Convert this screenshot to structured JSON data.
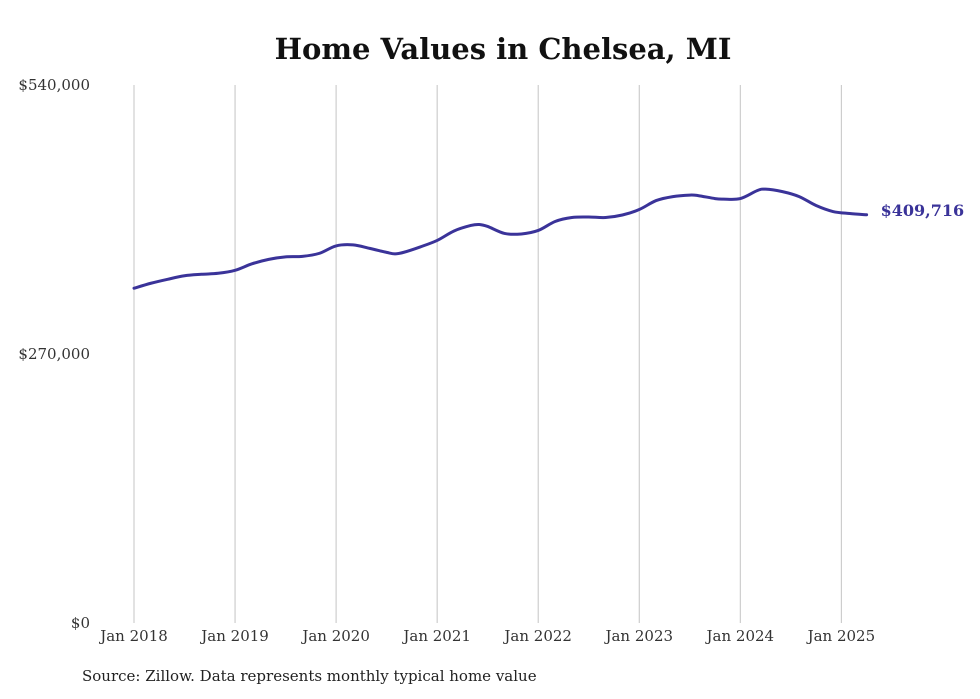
{
  "chart_data": {
    "type": "line",
    "title": "Home Values in Chelsea, MI",
    "xlabel": "",
    "ylabel": "",
    "ylim": [
      0,
      540000
    ],
    "y_ticks": [
      0,
      270000,
      540000
    ],
    "y_tick_labels": [
      "$0",
      "$270,000",
      "$540,000"
    ],
    "x_range": [
      2018.0,
      2025.333
    ],
    "x_ticks": [
      2018,
      2019,
      2020,
      2021,
      2022,
      2023,
      2024,
      2025
    ],
    "x_tick_labels": [
      "Jan 2018",
      "Jan 2019",
      "Jan 2020",
      "Jan 2021",
      "Jan 2022",
      "Jan 2023",
      "Jan 2024",
      "Jan 2025"
    ],
    "grid": "vertical lines at x ticks",
    "legend": "none",
    "line_color": "#3a3399",
    "end_label": "$409,716",
    "series": [
      {
        "x": [
          2018.0,
          2018.167,
          2018.333,
          2018.5,
          2018.667,
          2018.833,
          2019.0,
          2019.167,
          2019.333,
          2019.5,
          2019.667,
          2019.833,
          2020.0,
          2020.167,
          2020.333,
          2020.5,
          2020.583,
          2020.667,
          2020.833,
          2021.0,
          2021.167,
          2021.333,
          2021.417,
          2021.5,
          2021.667,
          2021.833,
          2022.0,
          2022.167,
          2022.333,
          2022.5,
          2022.667,
          2022.833,
          2023.0,
          2023.167,
          2023.333,
          2023.5,
          2023.583,
          2023.75,
          2023.833,
          2024.0,
          2024.167,
          2024.25,
          2024.417,
          2024.583,
          2024.75,
          2024.917,
          2025.083,
          2025.25
        ],
        "values": [
          336000,
          341000,
          345000,
          348500,
          350000,
          351000,
          354000,
          360500,
          365000,
          367500,
          368000,
          371000,
          378500,
          379500,
          376000,
          372000,
          370500,
          372000,
          377500,
          384000,
          393500,
          399000,
          400000,
          398000,
          391000,
          390500,
          394000,
          403000,
          407000,
          407500,
          407000,
          409500,
          415000,
          424000,
          428000,
          429500,
          429000,
          426000,
          425500,
          426000,
          434000,
          435500,
          433000,
          428000,
          419000,
          413000,
          411000,
          409716
        ]
      }
    ]
  },
  "source_note": "Source: Zillow. Data represents monthly typical home value"
}
